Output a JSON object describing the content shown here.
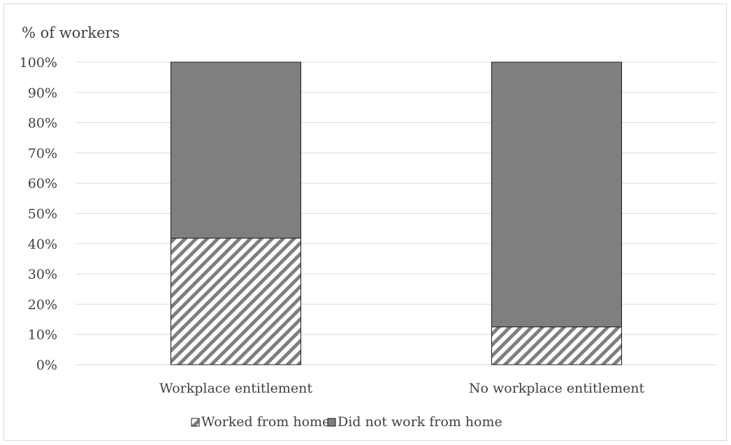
{
  "chart_data": {
    "type": "bar",
    "stacked": true,
    "title": "",
    "ylabel": "% of workers",
    "xlabel": "",
    "categories": [
      "Workplace entitlement",
      "No workplace entitlement"
    ],
    "series": [
      {
        "name": "Worked from home",
        "values": [
          41.8,
          12.5
        ],
        "fill": "hatched",
        "color": "#7f7f7f"
      },
      {
        "name": "Did not work from home",
        "values": [
          58.2,
          87.5
        ],
        "fill": "solid",
        "color": "#7f7f7f"
      }
    ],
    "ylim": [
      0,
      100
    ],
    "yticks": [
      "0%",
      "10%",
      "20%",
      "30%",
      "40%",
      "50%",
      "60%",
      "70%",
      "80%",
      "90%",
      "100%"
    ],
    "grid": true,
    "legend_position": "bottom"
  }
}
